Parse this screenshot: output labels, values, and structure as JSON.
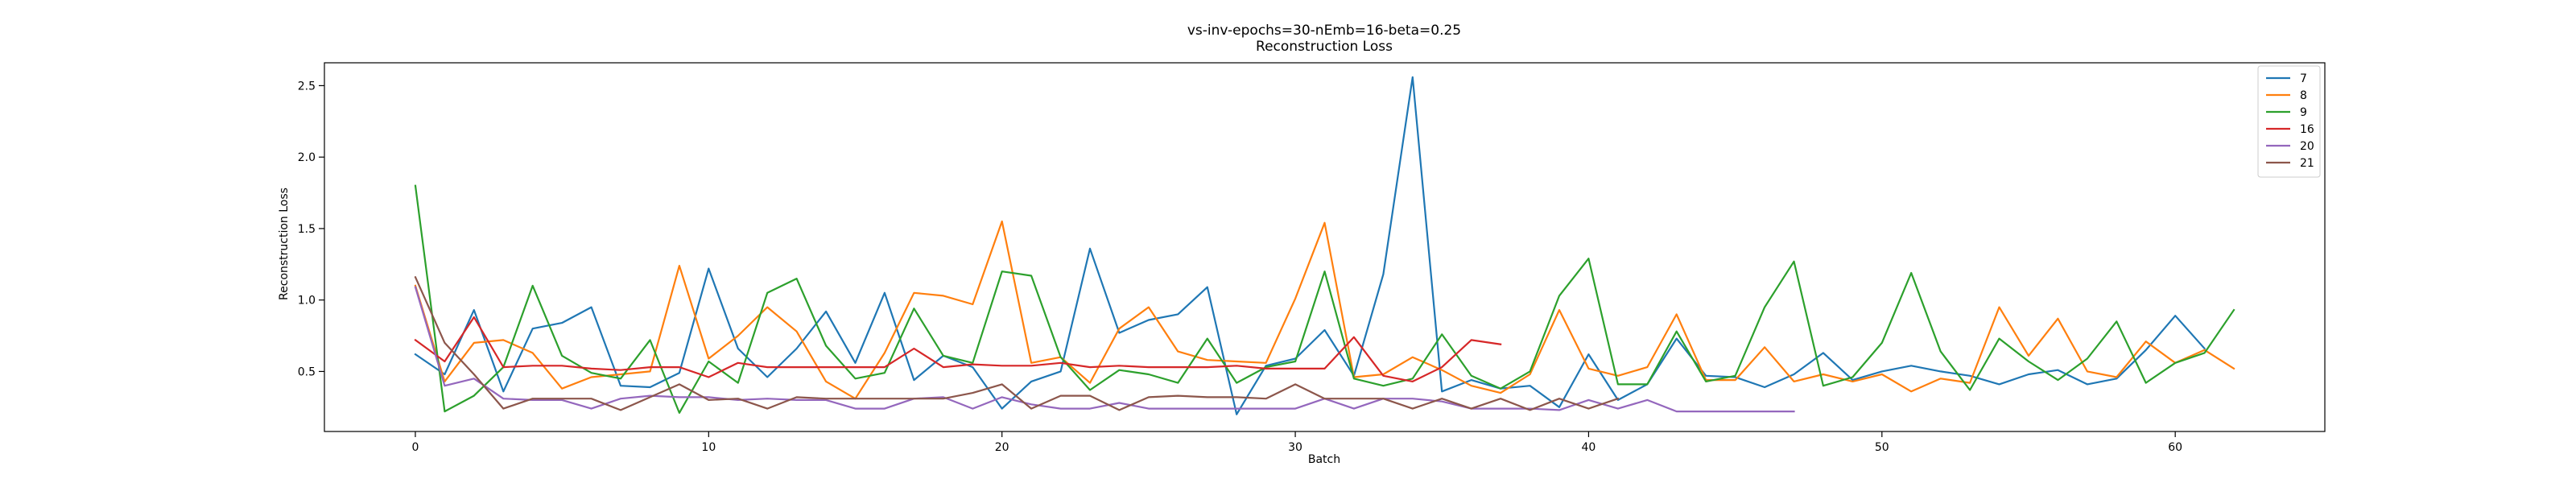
{
  "chart_data": {
    "type": "line",
    "title": "vs-inv-epochs=30-nEmb=16-beta=0.25",
    "subtitle": "Reconstruction Loss",
    "xlabel": "Batch",
    "ylabel": "Reconstruction Loss",
    "xlim": [
      -3.1,
      65.1
    ],
    "ylim": [
      0.08,
      2.66
    ],
    "xticks": [
      0,
      10,
      20,
      30,
      40,
      50,
      60
    ],
    "xtick_labels": [
      "0",
      "10",
      "20",
      "30",
      "40",
      "50",
      "60"
    ],
    "yticks": [
      0.5,
      1.0,
      1.5,
      2.0,
      2.5
    ],
    "ytick_labels": [
      "0.5",
      "1.0",
      "1.5",
      "2.0",
      "2.5"
    ],
    "grid": false,
    "legend_position": "top-right",
    "series": [
      {
        "name": "7",
        "color": "#1f77b4",
        "values": [
          0.62,
          0.48,
          0.93,
          0.36,
          0.8,
          0.84,
          0.95,
          0.4,
          0.39,
          0.49,
          1.22,
          0.66,
          0.46,
          0.66,
          0.92,
          0.56,
          1.05,
          0.44,
          0.61,
          0.53,
          0.24,
          0.43,
          0.5,
          1.36,
          0.77,
          0.86,
          0.9,
          1.09,
          0.2,
          0.54,
          0.59,
          0.79,
          0.47,
          1.18,
          2.56,
          0.36,
          0.44,
          0.38,
          0.4,
          0.25,
          0.62,
          0.3,
          0.41,
          0.73,
          0.47,
          0.46,
          0.39,
          0.48,
          0.63,
          0.44,
          0.5,
          0.54,
          0.5,
          0.47,
          0.41,
          0.48,
          0.51,
          0.41,
          0.45,
          0.65,
          0.89,
          0.66
        ]
      },
      {
        "name": "8",
        "color": "#ff7f0e",
        "values": [
          1.1,
          0.43,
          0.7,
          0.72,
          0.63,
          0.38,
          0.46,
          0.48,
          0.5,
          1.24,
          0.59,
          0.75,
          0.95,
          0.78,
          0.43,
          0.31,
          0.63,
          1.05,
          1.03,
          0.97,
          1.55,
          0.56,
          0.6,
          0.42,
          0.8,
          0.95,
          0.64,
          0.58,
          0.57,
          0.56,
          1.01,
          1.54,
          0.46,
          0.48,
          0.6,
          0.51,
          0.4,
          0.35,
          0.48,
          0.93,
          0.52,
          0.47,
          0.53,
          0.9,
          0.44,
          0.44,
          0.67,
          0.43,
          0.48,
          0.43,
          0.48,
          0.36,
          0.45,
          0.42,
          0.95,
          0.61,
          0.87,
          0.5,
          0.46,
          0.71,
          0.56,
          0.65,
          0.52
        ]
      },
      {
        "name": "9",
        "color": "#2ca02c",
        "values": [
          1.8,
          0.22,
          0.33,
          0.53,
          1.1,
          0.61,
          0.49,
          0.45,
          0.72,
          0.21,
          0.57,
          0.42,
          1.05,
          1.15,
          0.68,
          0.45,
          0.49,
          0.94,
          0.61,
          0.56,
          1.2,
          1.17,
          0.6,
          0.37,
          0.51,
          0.48,
          0.42,
          0.73,
          0.42,
          0.53,
          0.57,
          1.2,
          0.45,
          0.4,
          0.45,
          0.76,
          0.47,
          0.38,
          0.5,
          1.03,
          1.29,
          0.41,
          0.41,
          0.78,
          0.43,
          0.47,
          0.95,
          1.27,
          0.4,
          0.46,
          0.7,
          1.19,
          0.64,
          0.37,
          0.73,
          0.57,
          0.44,
          0.59,
          0.85,
          0.42,
          0.56,
          0.63,
          0.93
        ]
      },
      {
        "name": "16",
        "color": "#d62728",
        "values": [
          0.72,
          0.57,
          0.88,
          0.53,
          0.54,
          0.54,
          0.52,
          0.51,
          0.53,
          0.53,
          0.46,
          0.56,
          0.53,
          0.53,
          0.53,
          0.53,
          0.53,
          0.66,
          0.53,
          0.55,
          0.54,
          0.54,
          0.56,
          0.53,
          0.54,
          0.53,
          0.53,
          0.53,
          0.54,
          0.52,
          0.52,
          0.52,
          0.74,
          0.47,
          0.43,
          0.53,
          0.72,
          0.69
        ]
      },
      {
        "name": "20",
        "color": "#9467bd",
        "values": [
          1.09,
          0.4,
          0.45,
          0.31,
          0.3,
          0.3,
          0.24,
          0.31,
          0.33,
          0.32,
          0.32,
          0.3,
          0.31,
          0.3,
          0.3,
          0.24,
          0.24,
          0.31,
          0.32,
          0.24,
          0.32,
          0.27,
          0.24,
          0.24,
          0.28,
          0.24,
          0.24,
          0.24,
          0.24,
          0.24,
          0.24,
          0.31,
          0.24,
          0.31,
          0.31,
          0.29,
          0.24,
          0.24,
          0.24,
          0.23,
          0.3,
          0.24,
          0.3,
          0.22,
          0.22,
          0.22,
          0.22,
          0.22
        ]
      },
      {
        "name": "21",
        "color": "#8c564b",
        "values": [
          1.16,
          0.7,
          0.48,
          0.24,
          0.31,
          0.31,
          0.31,
          0.23,
          0.32,
          0.41,
          0.3,
          0.31,
          0.24,
          0.32,
          0.31,
          0.31,
          0.31,
          0.31,
          0.31,
          0.35,
          0.41,
          0.24,
          0.33,
          0.33,
          0.23,
          0.32,
          0.33,
          0.32,
          0.32,
          0.31,
          0.41,
          0.31,
          0.31,
          0.31,
          0.24,
          0.31,
          0.24,
          0.31,
          0.23,
          0.31,
          0.24,
          0.31
        ]
      }
    ]
  }
}
